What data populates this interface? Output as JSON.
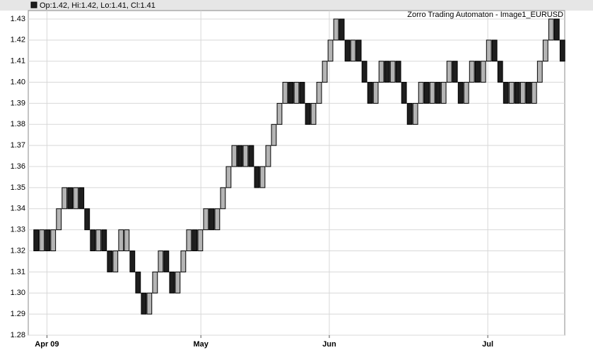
{
  "chart_data": {
    "type": "candlestick",
    "header": "Op:1.42, Hi:1.42, Lo:1.41, Cl:1.41",
    "title": "Zorro Trading Automaton - Image1_EURUSD",
    "x": [
      0,
      1,
      2,
      3,
      4,
      5,
      6,
      7,
      8,
      9,
      10,
      11,
      12,
      13,
      14,
      15,
      16,
      17,
      18,
      19,
      20,
      21,
      22,
      23,
      24,
      25,
      26,
      27,
      28,
      29,
      30,
      31,
      32,
      33,
      34,
      35,
      36,
      37,
      38,
      39,
      40,
      41,
      42,
      43,
      44,
      45,
      46,
      47,
      48,
      49,
      50,
      51,
      52,
      53,
      54,
      55,
      56,
      57,
      58,
      59,
      60,
      61,
      62,
      63,
      64,
      65,
      66,
      67,
      68,
      69,
      70,
      71,
      72,
      73,
      74,
      75,
      76,
      77,
      78,
      79,
      80,
      81,
      82,
      83,
      84,
      85,
      86,
      87,
      88,
      89,
      90,
      91,
      92,
      93
    ],
    "open": [
      1.33,
      1.32,
      1.33,
      1.32,
      1.33,
      1.34,
      1.35,
      1.34,
      1.35,
      1.34,
      1.33,
      1.32,
      1.33,
      1.32,
      1.31,
      1.32,
      1.32,
      1.32,
      1.31,
      1.3,
      1.29,
      1.3,
      1.31,
      1.32,
      1.31,
      1.3,
      1.31,
      1.32,
      1.33,
      1.32,
      1.33,
      1.34,
      1.33,
      1.34,
      1.35,
      1.36,
      1.37,
      1.36,
      1.37,
      1.36,
      1.35,
      1.36,
      1.37,
      1.38,
      1.39,
      1.4,
      1.39,
      1.4,
      1.39,
      1.38,
      1.39,
      1.4,
      1.41,
      1.42,
      1.43,
      1.42,
      1.41,
      1.42,
      1.41,
      1.4,
      1.39,
      1.4,
      1.41,
      1.4,
      1.41,
      1.4,
      1.39,
      1.38,
      1.39,
      1.4,
      1.39,
      1.4,
      1.39,
      1.4,
      1.41,
      1.4,
      1.39,
      1.4,
      1.41,
      1.4,
      1.41,
      1.42,
      1.41,
      1.4,
      1.39,
      1.4,
      1.39,
      1.4,
      1.39,
      1.4,
      1.41,
      1.42,
      1.43,
      1.42
    ],
    "close": [
      1.32,
      1.33,
      1.32,
      1.33,
      1.34,
      1.35,
      1.34,
      1.35,
      1.34,
      1.33,
      1.32,
      1.33,
      1.32,
      1.31,
      1.32,
      1.33,
      1.33,
      1.31,
      1.3,
      1.29,
      1.3,
      1.31,
      1.32,
      1.31,
      1.3,
      1.31,
      1.32,
      1.33,
      1.32,
      1.33,
      1.34,
      1.33,
      1.34,
      1.35,
      1.36,
      1.37,
      1.36,
      1.37,
      1.36,
      1.35,
      1.36,
      1.37,
      1.38,
      1.39,
      1.4,
      1.39,
      1.4,
      1.39,
      1.38,
      1.39,
      1.4,
      1.41,
      1.42,
      1.43,
      1.42,
      1.41,
      1.42,
      1.41,
      1.4,
      1.39,
      1.4,
      1.41,
      1.4,
      1.41,
      1.4,
      1.39,
      1.38,
      1.39,
      1.4,
      1.39,
      1.4,
      1.39,
      1.4,
      1.41,
      1.4,
      1.39,
      1.4,
      1.41,
      1.4,
      1.41,
      1.42,
      1.41,
      1.4,
      1.39,
      1.4,
      1.39,
      1.4,
      1.39,
      1.4,
      1.41,
      1.42,
      1.43,
      1.42,
      1.41
    ],
    "up_color": "#b4b4b4",
    "down_color": "#1e1e1e",
    "xlim": [
      -1.4,
      93.4
    ],
    "xticks": [
      {
        "value": 1.9,
        "label": "Apr 09"
      },
      {
        "value": 29.1,
        "label": "May"
      },
      {
        "value": 51.8,
        "label": "Jun"
      },
      {
        "value": 79.8,
        "label": "Jul"
      }
    ],
    "ylim": [
      1.28,
      1.434
    ],
    "yticks": [
      1.28,
      1.29,
      {
        "value": 1.3,
        "label": "1.30"
      },
      1.31,
      1.32,
      1.33,
      1.34,
      1.35,
      1.36,
      1.37,
      1.38,
      1.39,
      {
        "value": 1.4,
        "label": "1.40"
      },
      1.41,
      1.42,
      1.43
    ],
    "grid": true
  }
}
